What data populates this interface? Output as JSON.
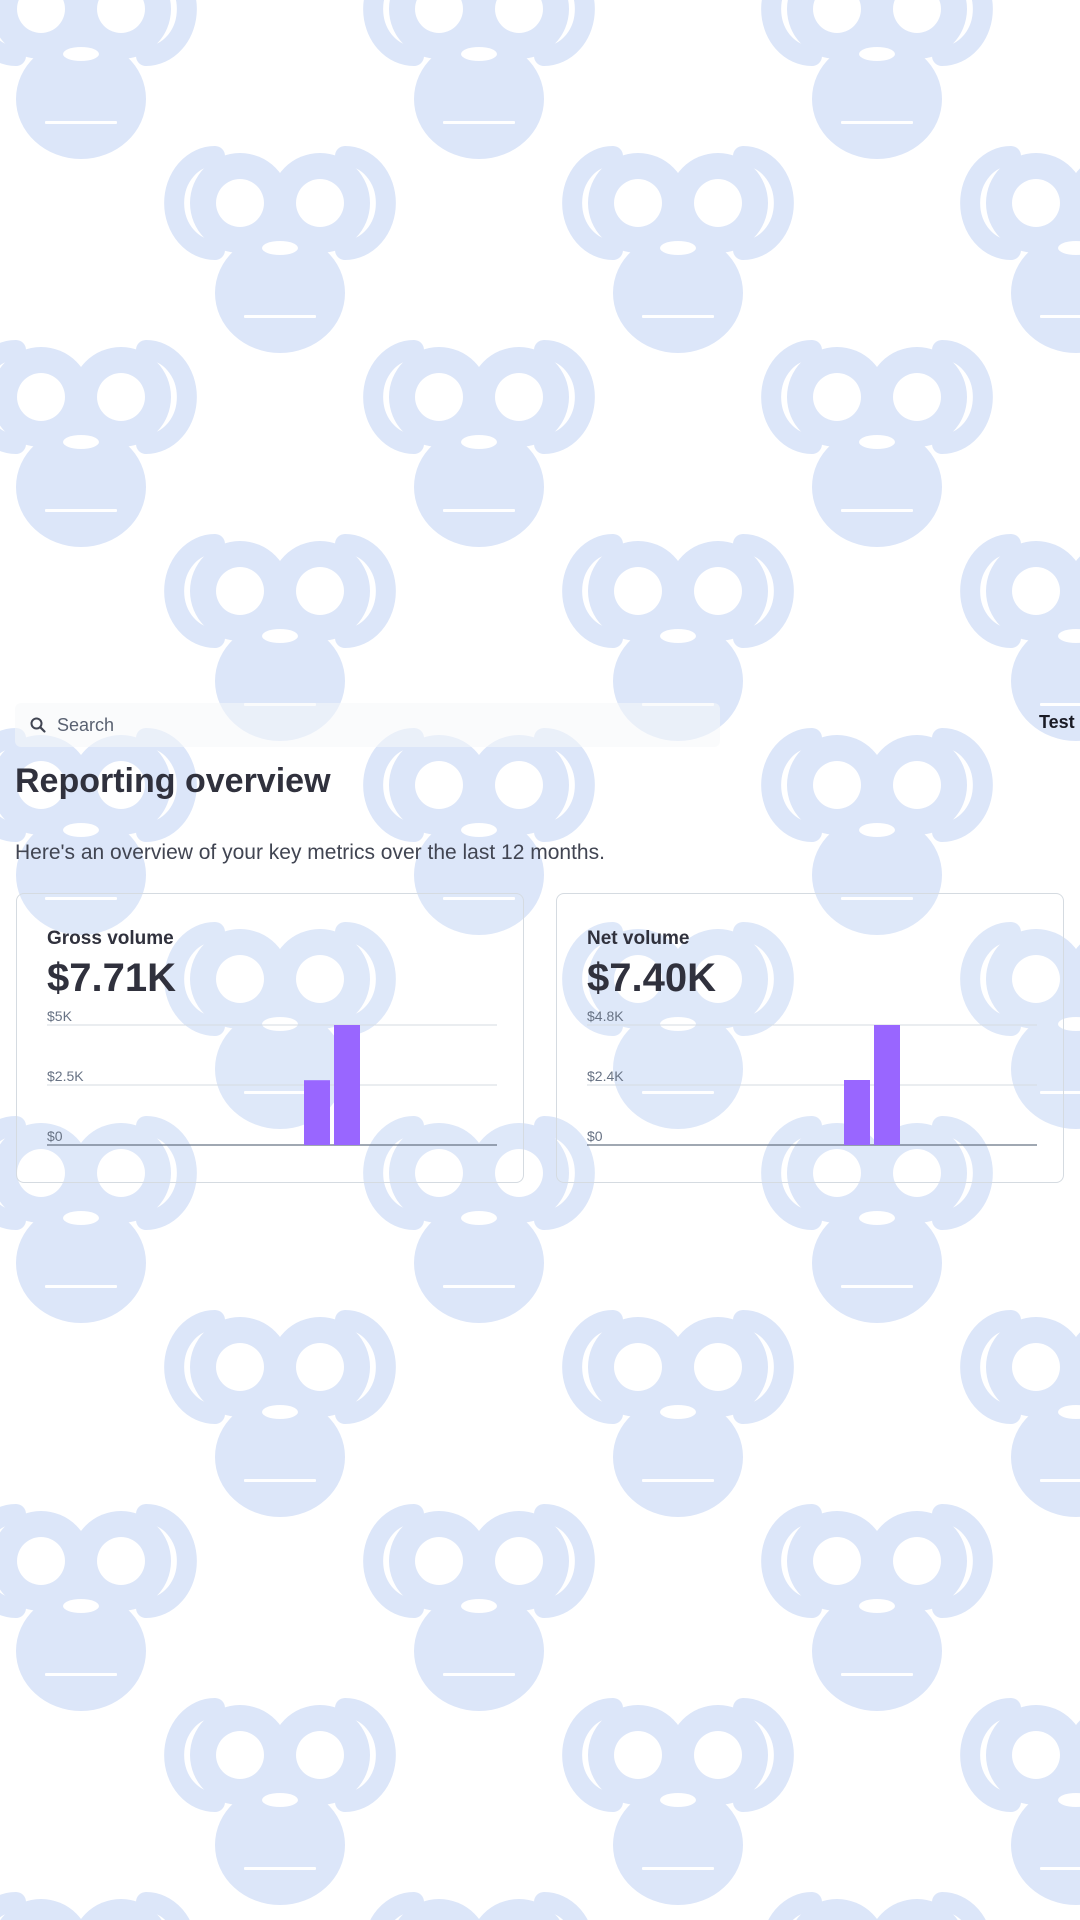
{
  "search": {
    "placeholder": "Search",
    "icon": "search-icon"
  },
  "account": {
    "label": "Test mode"
  },
  "page": {
    "title": "Reporting overview",
    "subtitle": "Here's an overview of your key metrics over the last 12 months."
  },
  "background": {
    "pattern": "monkey-face-icon",
    "color": "#dce6f9"
  },
  "cards": [
    {
      "label": "Gross volume",
      "value": "$7.71K",
      "chart_data": {
        "type": "bar",
        "ylim": [
          0,
          5000
        ],
        "yticks": [
          {
            "value": 0,
            "label": "$0"
          },
          {
            "value": 2500,
            "label": "$2.5K"
          },
          {
            "value": 5000,
            "label": "$5K"
          }
        ],
        "series": [
          {
            "values": [
              0,
              0,
              0,
              0,
              0,
              0,
              0,
              0,
              0,
              2700,
              5000,
              0
            ]
          }
        ],
        "bar_color": "#9966ff"
      }
    },
    {
      "label": "Net volume",
      "value": "$7.40K",
      "chart_data": {
        "type": "bar",
        "ylim": [
          0,
          4800
        ],
        "yticks": [
          {
            "value": 0,
            "label": "$0"
          },
          {
            "value": 2400,
            "label": "$2.4K"
          },
          {
            "value": 4800,
            "label": "$4.8K"
          }
        ],
        "series": [
          {
            "values": [
              0,
              0,
              0,
              0,
              0,
              0,
              0,
              0,
              0,
              2600,
              4800,
              0
            ]
          }
        ],
        "bar_color": "#9966ff"
      }
    }
  ]
}
